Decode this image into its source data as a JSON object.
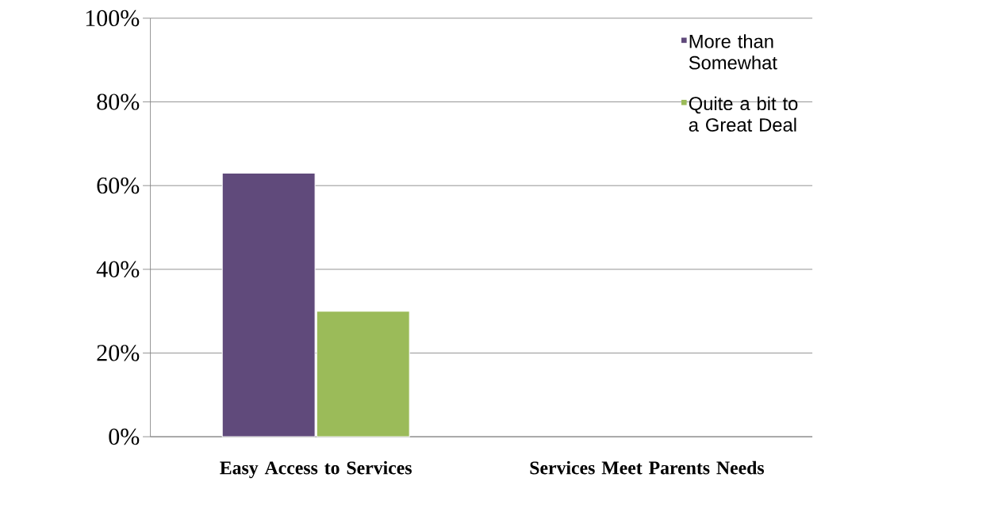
{
  "chart_data": {
    "type": "bar",
    "categories": [
      "Easy Access to Services",
      "Services Meet Parents Needs"
    ],
    "series": [
      {
        "name": "More than Somewhat",
        "color": "#604a7b",
        "values": [
          63,
          null
        ]
      },
      {
        "name": "Quite a bit to a Great Deal",
        "color": "#9bbb59",
        "values": [
          30,
          null
        ]
      }
    ],
    "ylim": [
      0,
      100
    ],
    "yticks": [
      {
        "value": 0,
        "label": "0%"
      },
      {
        "value": 20,
        "label": "20%"
      },
      {
        "value": 40,
        "label": "40%"
      },
      {
        "value": 60,
        "label": "60%"
      },
      {
        "value": 80,
        "label": "80%"
      },
      {
        "value": 100,
        "label": "100%"
      }
    ],
    "grid": "y",
    "legend": "top right"
  }
}
